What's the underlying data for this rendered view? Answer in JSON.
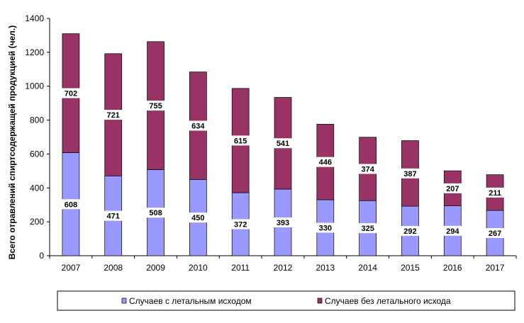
{
  "chart_data": {
    "type": "bar",
    "stacked": true,
    "categories": [
      "2007",
      "2008",
      "2009",
      "2010",
      "2011",
      "2012",
      "2013",
      "2014",
      "2015",
      "2016",
      "2017"
    ],
    "series": [
      {
        "name": "Случаев с летальным исходом",
        "color": "#9999ff",
        "values": [
          608,
          471,
          508,
          450,
          372,
          393,
          330,
          325,
          292,
          294,
          267
        ]
      },
      {
        "name": "Случаев без летального исхода",
        "color": "#993366",
        "values": [
          702,
          721,
          755,
          634,
          615,
          541,
          446,
          374,
          387,
          207,
          211
        ]
      }
    ],
    "ylabel": "Всего отравлений спиртсодержащей  продукцией  (чел.)",
    "xlabel": "",
    "ylim": [
      0,
      1400
    ],
    "yticks": [
      0,
      200,
      400,
      600,
      800,
      1000,
      1200,
      1400
    ],
    "grid": false,
    "legend_position": "bottom"
  }
}
